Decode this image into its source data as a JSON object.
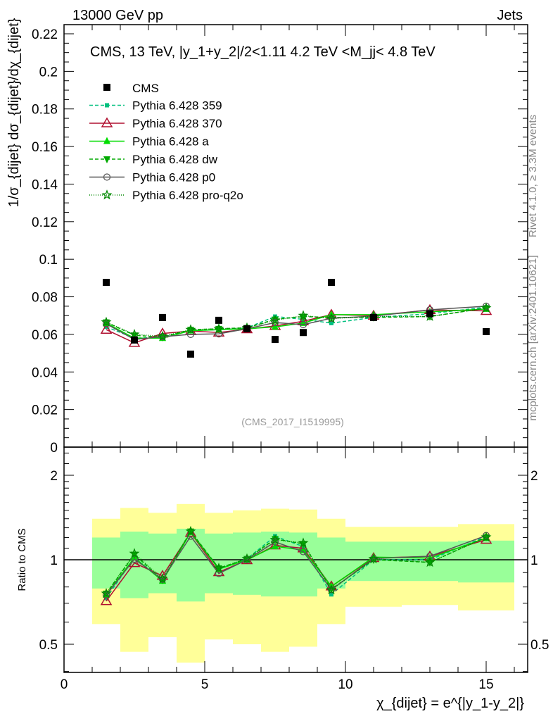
{
  "header": {
    "left": "13000 GeV pp",
    "right": "Jets"
  },
  "side": {
    "rivet": "Rivet 4.1.0, ≥ 3.3M events",
    "mcplots": "mcplots.cern.ch [arXiv:2401.10621]"
  },
  "chart_data": {
    "type": "scatter",
    "title": "CMS, 13 TeV, |y_1+y_2|/2<1.11 4.2 TeV <M_jj< 4.8 TeV",
    "analysis": "(CMS_2017_I1519995)",
    "ylabel": "1/σ_{dijet} dσ_{dijet}/dχ_{dijet}",
    "ratio_ylabel": "Ratio to CMS",
    "xlabel": "χ_{dijet} = e^{|y_1-y_2|}",
    "xlim": [
      0,
      16.5
    ],
    "ylim": [
      0,
      0.22
    ],
    "ratio_ylim": [
      0.4,
      2.55
    ],
    "ratio_scale": "log",
    "legend_position": "top-left",
    "x_ticks": [
      "0",
      "5",
      "10",
      "15"
    ],
    "y_ticks": [
      "0",
      "0.02",
      "0.04",
      "0.06",
      "0.08",
      "0.1",
      "0.12",
      "0.14",
      "0.16",
      "0.18",
      "0.2",
      "0.22"
    ],
    "ratio_ticks": [
      "0.5",
      "1",
      "2"
    ],
    "bin_edges": [
      1,
      2,
      3,
      4,
      5,
      6,
      7,
      8,
      9,
      10,
      12,
      14,
      16
    ],
    "x": [
      1.5,
      2.5,
      3.5,
      4.5,
      5.5,
      6.5,
      7.5,
      8.5,
      9.5,
      11,
      13,
      15
    ],
    "data": {
      "name": "CMS",
      "values": [
        0.0877,
        0.057,
        0.069,
        0.0495,
        0.0675,
        0.063,
        0.0573,
        0.061,
        0.0877,
        0.069,
        0.071,
        0.0615
      ]
    },
    "bands": {
      "yellow_lo": [
        0.59,
        0.47,
        0.53,
        0.43,
        0.52,
        0.5,
        0.47,
        0.49,
        0.59,
        0.68,
        0.69,
        0.66
      ],
      "green_lo": [
        0.79,
        0.73,
        0.76,
        0.71,
        0.76,
        0.75,
        0.74,
        0.74,
        0.79,
        0.84,
        0.84,
        0.83
      ],
      "green_hi": [
        1.2,
        1.26,
        1.24,
        1.29,
        1.24,
        1.25,
        1.26,
        1.25,
        1.2,
        1.16,
        1.16,
        1.17
      ],
      "yellow_hi": [
        1.4,
        1.53,
        1.47,
        1.58,
        1.47,
        1.5,
        1.52,
        1.51,
        1.4,
        1.31,
        1.31,
        1.34
      ]
    },
    "series": [
      {
        "name": "Pythia 6.428 359",
        "color": "#00c07f",
        "dash": "5,3",
        "marker": "square-small",
        "values": [
          0.064,
          0.058,
          0.0585,
          0.062,
          0.0625,
          0.0635,
          0.0695,
          0.068,
          0.066,
          0.069,
          0.071,
          0.0745
        ]
      },
      {
        "name": "Pythia 6.428 370",
        "color": "#b01030",
        "dash": "",
        "marker": "triangle-open",
        "values": [
          0.0625,
          0.0555,
          0.0605,
          0.0618,
          0.061,
          0.0628,
          0.0645,
          0.067,
          0.0705,
          0.07,
          0.073,
          0.0725
        ]
      },
      {
        "name": "Pythia 6.428 a",
        "color": "#00dd00",
        "dash": "",
        "marker": "triangle",
        "values": [
          0.066,
          0.058,
          0.058,
          0.062,
          0.0625,
          0.063,
          0.064,
          0.066,
          0.0705,
          0.0705,
          0.072,
          0.0735
        ]
      },
      {
        "name": "Pythia 6.428 dw",
        "color": "#00aa00",
        "dash": "5,3",
        "marker": "triangle-down",
        "values": [
          0.0665,
          0.0595,
          0.0585,
          0.0625,
          0.063,
          0.0635,
          0.068,
          0.0695,
          0.069,
          0.069,
          0.0695,
          0.074
        ]
      },
      {
        "name": "Pythia 6.428 p0",
        "color": "#555555",
        "dash": "",
        "marker": "circle-open",
        "values": [
          0.0656,
          0.0573,
          0.0588,
          0.06,
          0.0603,
          0.063,
          0.0663,
          0.0652,
          0.0686,
          0.0697,
          0.0731,
          0.075
        ]
      },
      {
        "name": "Pythia 6.428 pro-q2o",
        "color": "#008800",
        "dash": "1,2",
        "marker": "star",
        "values": [
          0.0665,
          0.06,
          0.059,
          0.0625,
          0.063,
          0.0635,
          0.0675,
          0.07,
          0.0685,
          0.0695,
          0.0695,
          0.074
        ]
      }
    ]
  }
}
